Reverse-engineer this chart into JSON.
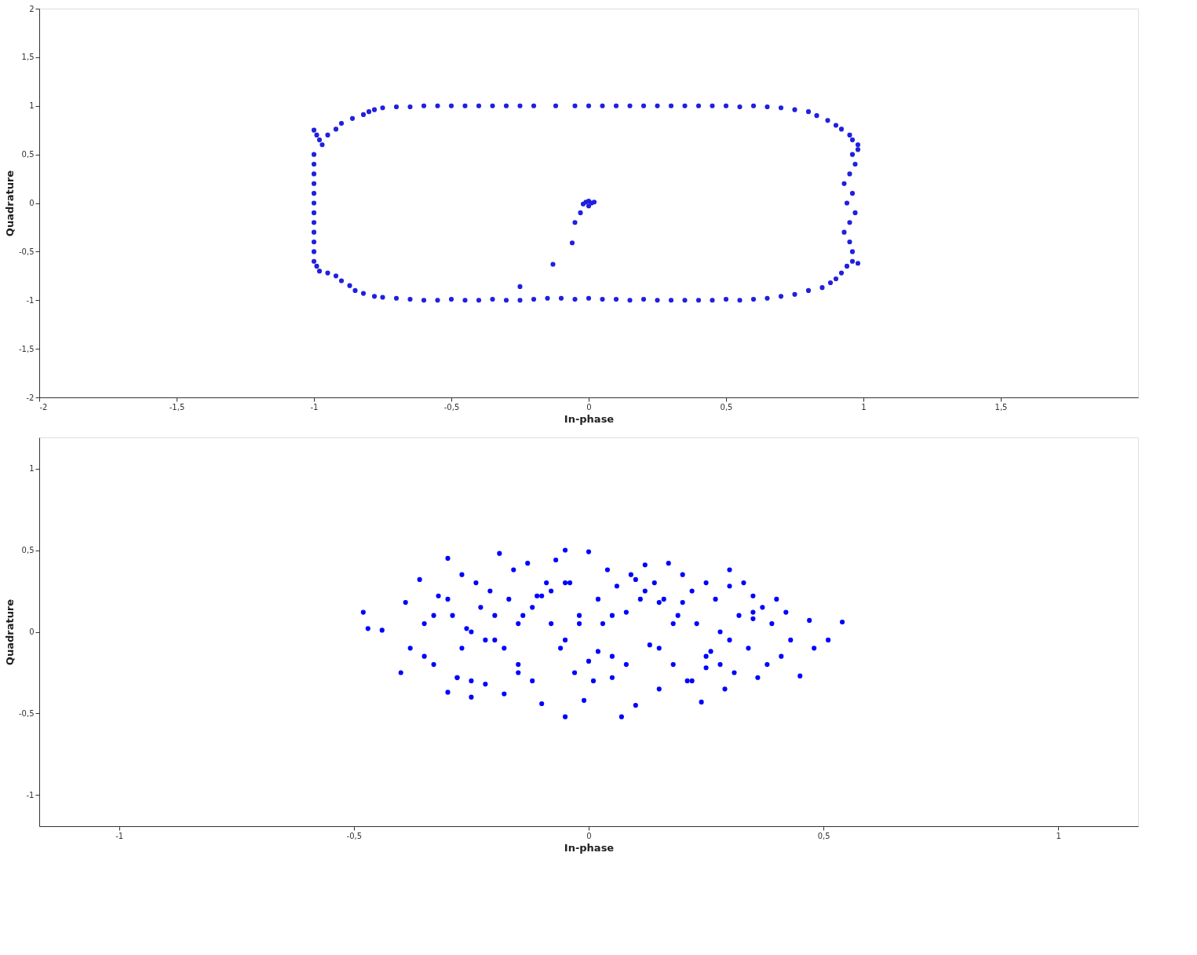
{
  "chart_data": [
    {
      "type": "scatter",
      "xlabel": "In-phase",
      "ylabel": "Quadrature",
      "marker": "circle",
      "xlim": [
        -2,
        2
      ],
      "ylim": [
        -2,
        2
      ],
      "xticks": [
        -2,
        {
          "value": -1.5,
          "label": "-1,5"
        },
        -1,
        {
          "value": -0.5,
          "label": "-0,5"
        },
        0,
        {
          "value": 0.5,
          "label": "0,5"
        },
        1,
        {
          "value": 1.5,
          "label": "1,5"
        }
      ],
      "yticks": [
        -2,
        {
          "value": -1.5,
          "label": "-1,5"
        },
        -1,
        {
          "value": -0.5,
          "label": "-0,5"
        },
        0,
        {
          "value": 0.5,
          "label": "0,5"
        },
        1,
        {
          "value": 1.5,
          "label": "1,5"
        },
        2
      ],
      "series": [
        {
          "color": "#2020e0",
          "x": [
            -0.75,
            -0.7,
            -0.65,
            -0.6,
            -0.55,
            -0.5,
            -0.45,
            -0.4,
            -0.35,
            -0.3,
            -0.25,
            -0.2,
            -0.12,
            -0.05,
            0,
            0.05,
            0.1,
            0.15,
            0.2,
            0.25,
            0.3,
            0.35,
            0.4,
            0.45,
            0.5,
            0.55,
            0.6,
            0.65,
            0.7,
            0.75,
            -1,
            -0.99,
            -0.98,
            -0.97,
            -0.95,
            -0.92,
            -0.9,
            -0.86,
            -0.82,
            -0.8,
            -0.78,
            -1,
            -1,
            -1,
            -1,
            -1,
            -1,
            -1,
            -1,
            -1,
            -1,
            -1,
            -1,
            -0.99,
            -0.98,
            -0.95,
            -0.92,
            -0.9,
            -0.87,
            -0.85,
            -0.82,
            -0.78,
            -0.75,
            -0.7,
            -0.65,
            -0.6,
            -0.55,
            -0.5,
            -0.45,
            -0.4,
            -0.35,
            -0.3,
            -0.25,
            -0.2,
            -0.15,
            -0.1,
            -0.05,
            0,
            0.05,
            0.1,
            0.15,
            0.2,
            0.25,
            0.3,
            0.35,
            0.4,
            0.45,
            0.5,
            0.55,
            0.6,
            0.65,
            0.7,
            0.75,
            0.8,
            0.85,
            0.88,
            0.9,
            0.92,
            0.94,
            0.96,
            0.98,
            0.96,
            0.95,
            0.93,
            0.95,
            0.97,
            0.94,
            0.96,
            0.93,
            0.95,
            0.97,
            0.96,
            0.98,
            0.98,
            0.96,
            0.95,
            0.92,
            0.9,
            0.87,
            0.83,
            0.8,
            -0.01,
            0,
            0.01,
            0.02,
            -0.02,
            0,
            -0.03,
            -0.05,
            -0.06,
            -0.13,
            -0.25
          ],
          "values": [
            0.98,
            0.99,
            0.99,
            1,
            1,
            1,
            1,
            1,
            1,
            1,
            1,
            1,
            1,
            1,
            1,
            1,
            1,
            1,
            1,
            1,
            1,
            1,
            1,
            1,
            1,
            0.99,
            1,
            0.99,
            0.98,
            0.96,
            0.75,
            0.7,
            0.65,
            0.6,
            0.7,
            0.76,
            0.82,
            0.87,
            0.91,
            0.94,
            0.96,
            0.5,
            0.4,
            0.3,
            0.2,
            0.1,
            0,
            -0.1,
            -0.2,
            -0.3,
            -0.4,
            -0.5,
            -0.6,
            -0.65,
            -0.7,
            -0.72,
            -0.75,
            -0.8,
            -0.85,
            -0.9,
            -0.93,
            -0.96,
            -0.97,
            -0.98,
            -0.99,
            -1,
            -1,
            -0.99,
            -1,
            -1,
            -0.99,
            -1,
            -1,
            -0.99,
            -0.98,
            -0.98,
            -0.99,
            -0.98,
            -0.99,
            -0.99,
            -1,
            -0.99,
            -1,
            -1,
            -1,
            -1,
            -1,
            -0.99,
            -1,
            -0.99,
            -0.98,
            -0.96,
            -0.94,
            -0.9,
            -0.87,
            -0.82,
            -0.78,
            -0.72,
            -0.65,
            -0.6,
            -0.62,
            -0.5,
            -0.4,
            -0.3,
            -0.2,
            -0.1,
            0,
            0.1,
            0.2,
            0.3,
            0.4,
            0.5,
            0.55,
            0.6,
            0.65,
            0.7,
            0.76,
            0.8,
            0.85,
            0.9,
            0.94,
            0.01,
            0.02,
            0,
            0.01,
            -0.01,
            -0.03,
            -0.1,
            -0.2,
            -0.41,
            -0.63,
            -0.86
          ]
        }
      ]
    },
    {
      "type": "scatter",
      "xlabel": "In-phase",
      "ylabel": "Quadrature",
      "marker": "circle",
      "xlim": [
        -1.17,
        1.17
      ],
      "ylim": [
        -1.19,
        1.19
      ],
      "xticks": [
        -1,
        {
          "value": -0.5,
          "label": "-0,5"
        },
        0,
        {
          "value": 0.5,
          "label": "0,5"
        },
        1
      ],
      "yticks": [
        -1,
        {
          "value": -0.5,
          "label": "-0,5"
        },
        0,
        {
          "value": 0.5,
          "label": "0,5"
        },
        1
      ],
      "series": [
        {
          "color": "#0000ff",
          "x": [
            -0.48,
            -0.47,
            -0.44,
            -0.4,
            -0.39,
            -0.38,
            -0.36,
            -0.35,
            -0.33,
            -0.32,
            -0.3,
            -0.3,
            -0.29,
            -0.28,
            -0.27,
            -0.26,
            -0.25,
            -0.24,
            -0.23,
            -0.22,
            -0.21,
            -0.2,
            -0.19,
            -0.18,
            -0.17,
            -0.16,
            -0.15,
            -0.14,
            -0.13,
            -0.12,
            -0.11,
            -0.1,
            -0.09,
            -0.08,
            -0.07,
            -0.06,
            -0.05,
            -0.05,
            -0.04,
            -0.03,
            -0.02,
            -0.01,
            0,
            0.01,
            0.02,
            0.03,
            0.04,
            0.05,
            0.06,
            0.07,
            0.08,
            0.09,
            0.1,
            0.11,
            0.12,
            0.13,
            0.14,
            0.15,
            0.16,
            0.17,
            0.18,
            0.19,
            0.2,
            0.21,
            0.22,
            0.23,
            0.24,
            0.25,
            0.26,
            0.27,
            0.28,
            0.29,
            0.3,
            0.31,
            0.32,
            0.33,
            0.34,
            0.35,
            0.36,
            0.37,
            0.38,
            0.39,
            0.4,
            0.41,
            0.42,
            0.43,
            0.45,
            0.47,
            0.48,
            0.51,
            0.54,
            -0.35,
            -0.3,
            -0.25,
            -0.2,
            -0.15,
            -0.1,
            -0.05,
            0,
            0.05,
            0.1,
            0.15,
            0.2,
            0.25,
            0.3,
            -0.33,
            -0.27,
            -0.22,
            -0.12,
            -0.02,
            0.08,
            0.18,
            0.28,
            0.35,
            -0.28,
            -0.18,
            -0.08,
            0.02,
            0.12,
            0.22,
            0.3,
            -0.25,
            -0.15,
            -0.05,
            0.05,
            0.15,
            0.25,
            0.35
          ],
          "values": [
            0.12,
            0.02,
            0.01,
            -0.25,
            0.18,
            -0.1,
            0.32,
            0.05,
            -0.2,
            0.22,
            0.45,
            -0.37,
            0.1,
            -0.28,
            0.35,
            0.02,
            -0.4,
            0.3,
            0.15,
            -0.32,
            0.25,
            -0.05,
            0.48,
            -0.38,
            0.2,
            0.38,
            -0.2,
            0.1,
            0.42,
            -0.3,
            0.22,
            -0.44,
            0.3,
            0.05,
            0.44,
            -0.1,
            0.5,
            -0.52,
            0.3,
            -0.25,
            0.1,
            -0.42,
            0.49,
            -0.3,
            0.2,
            0.05,
            0.38,
            -0.15,
            0.28,
            -0.52,
            0.12,
            0.35,
            -0.45,
            0.2,
            0.41,
            -0.08,
            0.3,
            -0.35,
            0.2,
            0.42,
            -0.2,
            0.1,
            0.35,
            -0.3,
            0.25,
            0.05,
            -0.43,
            0.3,
            -0.12,
            0.2,
            0.0,
            -0.35,
            0.38,
            -0.25,
            0.1,
            0.3,
            -0.1,
            0.22,
            -0.28,
            0.15,
            -0.2,
            0.05,
            0.2,
            -0.15,
            0.12,
            -0.05,
            -0.27,
            0.07,
            -0.1,
            -0.05,
            0.06,
            -0.15,
            0.2,
            -0.3,
            0.1,
            -0.25,
            0.22,
            -0.05,
            -0.18,
            0.1,
            0.32,
            -0.1,
            0.18,
            -0.22,
            -0.05,
            0.1,
            -0.1,
            -0.05,
            0.15,
            0.05,
            -0.2,
            0.05,
            -0.2,
            0.12,
            -0.28,
            -0.1,
            0.25,
            -0.12,
            0.25,
            -0.3,
            0.28,
            0.0,
            0.05,
            0.3,
            -0.28,
            0.18,
            -0.15,
            0.08
          ]
        }
      ]
    }
  ]
}
